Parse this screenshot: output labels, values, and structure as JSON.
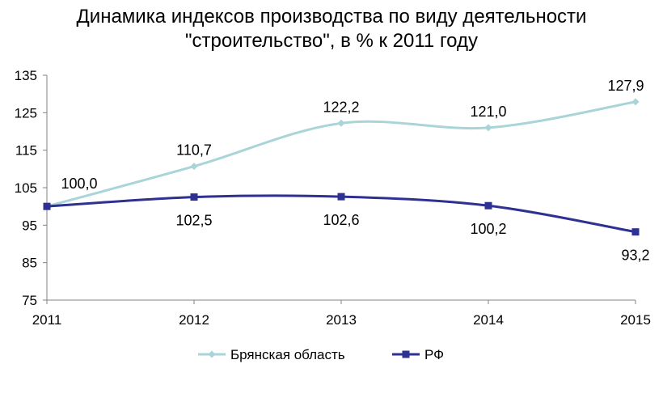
{
  "chart_data": {
    "type": "line",
    "title_lines": [
      "Динамика индексов производства по виду деятельности",
      "\"строительство\", в % к 2011 году"
    ],
    "categories": [
      "2011",
      "2012",
      "2013",
      "2014",
      "2015"
    ],
    "ylim": [
      75,
      135
    ],
    "yticks": [
      75,
      85,
      95,
      105,
      115,
      125,
      135
    ],
    "grid": false,
    "legend_position": "bottom",
    "series": [
      {
        "name": "Брянская область",
        "color": "#a9d4d8",
        "marker": "diamond",
        "values": [
          100.0,
          110.7,
          122.2,
          121.0,
          127.9
        ],
        "labels": [
          "100,0",
          "110,7",
          "122,2",
          "121,0",
          "127,9"
        ]
      },
      {
        "name": "РФ",
        "color": "#2e3192",
        "marker": "square",
        "values": [
          100.0,
          102.5,
          102.6,
          100.2,
          93.2
        ],
        "labels": [
          "",
          "102,5",
          "102,6",
          "100,2",
          "93,2"
        ]
      }
    ]
  }
}
